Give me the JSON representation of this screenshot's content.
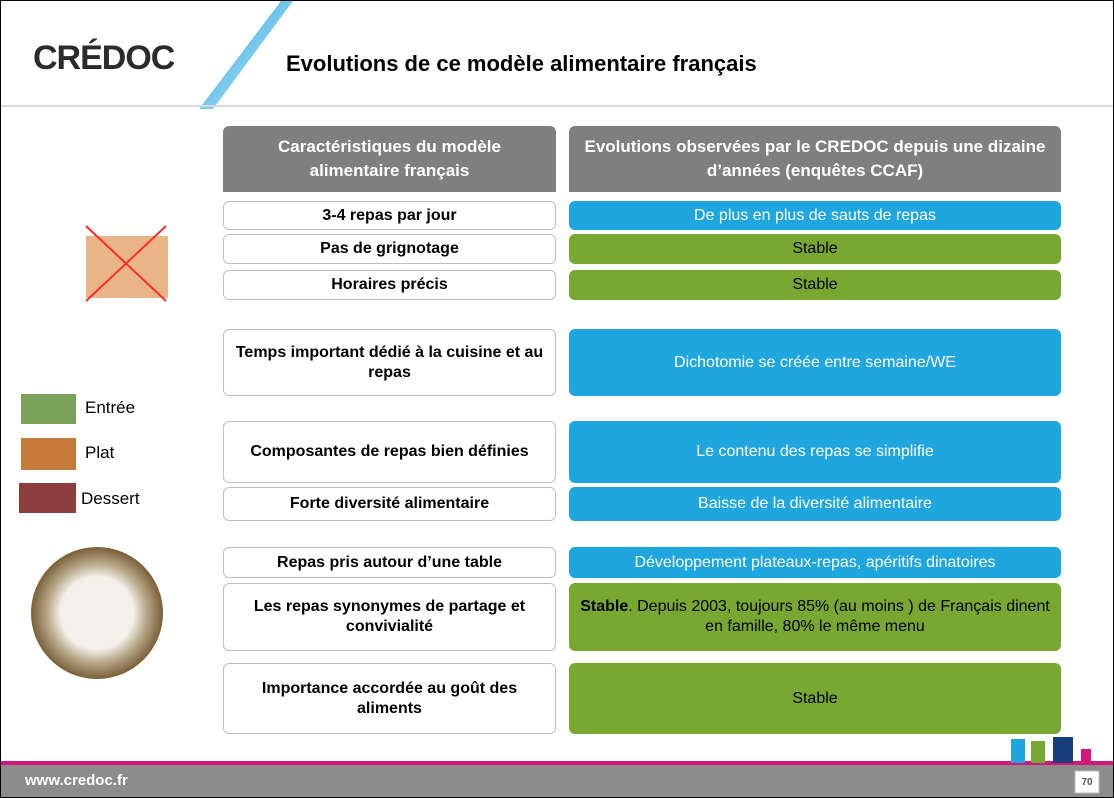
{
  "header": {
    "logo": "CRÉDOC",
    "title": "Evolutions de ce modèle alimentaire français"
  },
  "table": {
    "header": [
      "Caractéristiques du modèle alimentaire français",
      "Evolutions observées par le CREDOC depuis une dizaine d’années (enquêtes CCAF)"
    ],
    "rows": [
      [
        "3-4 repas par jour",
        "De plus en plus de sauts de repas"
      ],
      [
        "Pas de grignotage",
        "Stable"
      ],
      [
        "Horaires précis",
        "Stable"
      ],
      [
        "Temps important dédié à la cuisine et au repas",
        "Dichotomie se créée entre semaine/WE"
      ],
      [
        "Composantes de repas bien définies",
        "Le contenu des repas se simplifie"
      ],
      [
        "Forte diversité alimentaire",
        "Baisse de la diversité alimentaire"
      ],
      [
        "Repas pris autour d’une table",
        "Développement plateaux-repas, apéritifs dinatoires"
      ],
      [
        "Les repas synonymes de partage et convivialité",
        {
          "bold": "Stable",
          "text": ". Depuis 2003, toujours 85% (au moins ) de Français dinent en famille, 80% le même menu"
        }
      ],
      [
        "Importance accordée au goût des aliments",
        "Stable"
      ]
    ]
  },
  "sidebar": {
    "courses": [
      "Entrée",
      "Plat",
      "Dessert"
    ]
  },
  "footer": {
    "url": "www.credoc.fr",
    "page": "70"
  }
}
